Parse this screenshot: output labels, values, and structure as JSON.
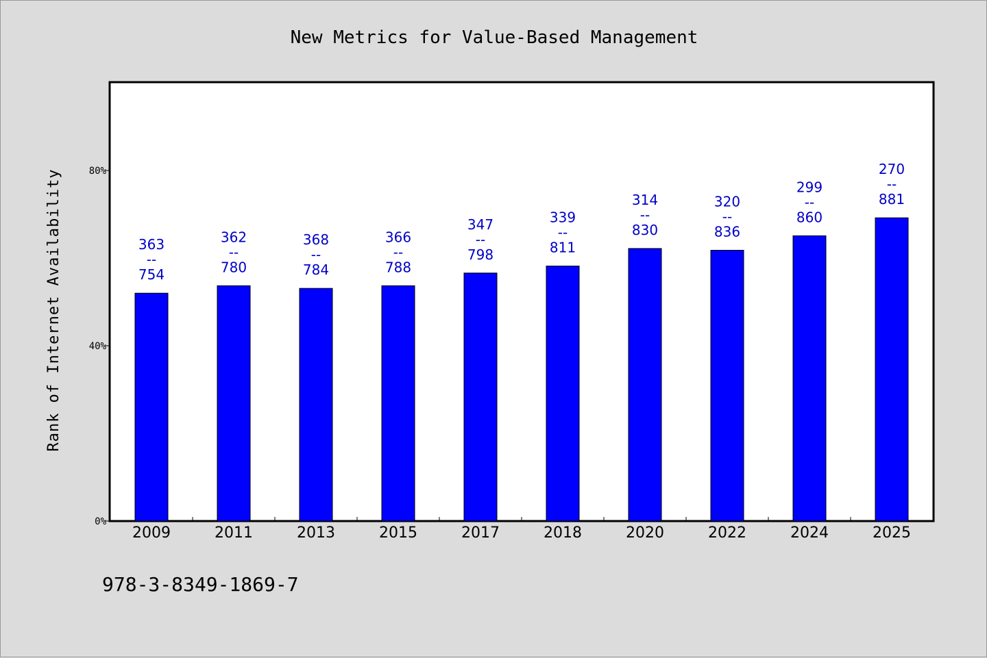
{
  "chart_data": {
    "type": "bar",
    "title": "New Metrics for Value-Based Management",
    "ylabel": "Rank of Internet Availability",
    "xlabel": "",
    "categories": [
      "2009",
      "2011",
      "2013",
      "2015",
      "2017",
      "2018",
      "2020",
      "2022",
      "2024",
      "2025"
    ],
    "values": [
      52,
      53.7,
      53.1,
      53.7,
      56.6,
      58.2,
      62.2,
      61.8,
      65.1,
      69.2
    ],
    "value_unit": "%",
    "ylim": [
      0,
      100
    ],
    "yticks": [
      "0%",
      "40%",
      "80%"
    ],
    "ytick_values": [
      0,
      40,
      80
    ],
    "label_separator": "--",
    "bar_labels": [
      {
        "top": "363",
        "bottom": "754"
      },
      {
        "top": "362",
        "bottom": "780"
      },
      {
        "top": "368",
        "bottom": "784"
      },
      {
        "top": "366",
        "bottom": "788"
      },
      {
        "top": "347",
        "bottom": "798"
      },
      {
        "top": "339",
        "bottom": "811"
      },
      {
        "top": "314",
        "bottom": "830"
      },
      {
        "top": "320",
        "bottom": "836"
      },
      {
        "top": "299",
        "bottom": "860"
      },
      {
        "top": "270",
        "bottom": "881"
      }
    ],
    "grid": false,
    "legend": "none",
    "colors": {
      "bar": "#0000ff",
      "bar_label": "#0000c8",
      "background": "#dcdcdc",
      "plot_background": "#ffffff"
    }
  },
  "footer": {
    "text": "978-3-8349-1869-7"
  }
}
